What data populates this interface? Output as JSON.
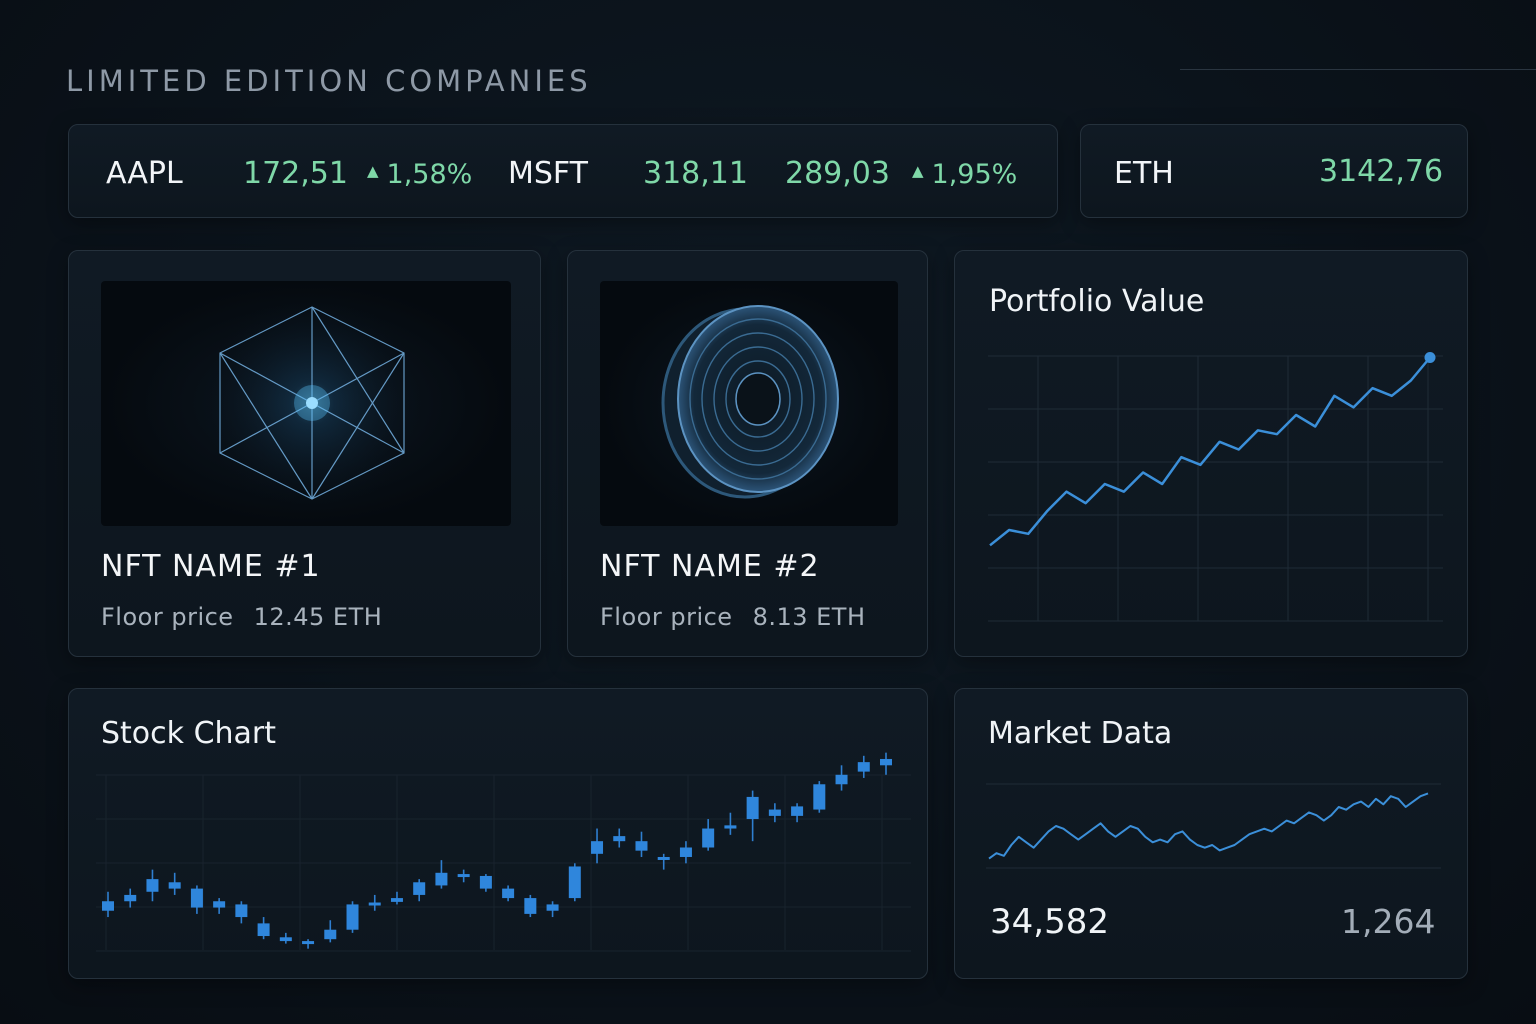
{
  "header": {
    "title": "LIMITED  EDITION COMPANIES"
  },
  "tickers": [
    {
      "symbol": "AAPL",
      "price": "172,51",
      "change": "1,58%"
    },
    {
      "symbol": "MSFT",
      "price": "318,11",
      "price2": "289,03",
      "change": "1,95%"
    }
  ],
  "eth": {
    "symbol": "ETH",
    "price": "3142,76"
  },
  "nfts": [
    {
      "name": "NFT NAME #1",
      "floor_label": "Floor price",
      "floor_value": "12.45 ETH",
      "image": "hexagon-crystal"
    },
    {
      "name": "NFT NAME #2",
      "floor_label": "Floor price",
      "floor_value": "8.13 ETH",
      "image": "coin"
    }
  ],
  "portfolio": {
    "title": "Portfolio Value",
    "accent": "#3b8fd9"
  },
  "stock_chart": {
    "title": "Stock Chart"
  },
  "market_data": {
    "title": "Market Data",
    "value_left": "34,582",
    "value_right": "1,264"
  },
  "colors": {
    "positive": "#7fd8a8",
    "accent": "#3b8fd9",
    "background": "#0b131b"
  },
  "chart_data": [
    {
      "type": "line",
      "title": "Portfolio Value",
      "x": [
        0,
        1,
        2,
        3,
        4,
        5,
        6,
        7,
        8,
        9,
        10,
        11,
        12,
        13,
        14,
        15,
        16,
        17,
        18,
        19,
        20,
        21,
        22,
        23
      ],
      "values": [
        8,
        12,
        11,
        17,
        22,
        19,
        24,
        22,
        27,
        24,
        31,
        29,
        35,
        33,
        38,
        37,
        42,
        39,
        47,
        44,
        49,
        47,
        51,
        57
      ]
    },
    {
      "type": "bar",
      "title": "Stock Chart",
      "candles": [
        {
          "o": 13,
          "c": 14.5,
          "h": 16,
          "l": 12
        },
        {
          "o": 14.5,
          "c": 15.5,
          "h": 16.5,
          "l": 13.5
        },
        {
          "o": 16,
          "c": 18,
          "h": 19.5,
          "l": 14.5
        },
        {
          "o": 17.5,
          "c": 16.5,
          "h": 19,
          "l": 15.5
        },
        {
          "o": 16.5,
          "c": 13.5,
          "h": 17,
          "l": 12.5
        },
        {
          "o": 14.5,
          "c": 13.5,
          "h": 15,
          "l": 12.5
        },
        {
          "o": 14,
          "c": 12,
          "h": 14.5,
          "l": 11
        },
        {
          "o": 11,
          "c": 9,
          "h": 12,
          "l": 8.5
        },
        {
          "o": 8.8,
          "c": 8.2,
          "h": 9.5,
          "l": 7.8
        },
        {
          "o": 8.2,
          "c": 7.8,
          "h": 8.5,
          "l": 7
        },
        {
          "o": 8.5,
          "c": 10,
          "h": 11.5,
          "l": 8
        },
        {
          "o": 10,
          "c": 14,
          "h": 14.5,
          "l": 9.5
        },
        {
          "o": 14,
          "c": 14.3,
          "h": 15.5,
          "l": 13
        },
        {
          "o": 14.4,
          "c": 15,
          "h": 16,
          "l": 14
        },
        {
          "o": 15.5,
          "c": 17.5,
          "h": 18,
          "l": 14.5
        },
        {
          "o": 17,
          "c": 19,
          "h": 21,
          "l": 16.5
        },
        {
          "o": 18.5,
          "c": 18.8,
          "h": 19.5,
          "l": 17.5
        },
        {
          "o": 18.5,
          "c": 16.5,
          "h": 18.8,
          "l": 16
        },
        {
          "o": 16.5,
          "c": 15,
          "h": 17,
          "l": 14.5
        },
        {
          "o": 15,
          "c": 12.5,
          "h": 15.5,
          "l": 12
        },
        {
          "o": 13,
          "c": 14,
          "h": 14.5,
          "l": 12
        },
        {
          "o": 15,
          "c": 20,
          "h": 20.5,
          "l": 14.5
        },
        {
          "o": 22,
          "c": 24,
          "h": 26,
          "l": 20.5
        },
        {
          "o": 24,
          "c": 24.8,
          "h": 26,
          "l": 23
        },
        {
          "o": 24,
          "c": 22.5,
          "h": 25.5,
          "l": 21.5
        },
        {
          "o": 21.5,
          "c": 21.2,
          "h": 22,
          "l": 19.5
        },
        {
          "o": 21.5,
          "c": 23,
          "h": 24,
          "l": 20.5
        },
        {
          "o": 23,
          "c": 26,
          "h": 27.5,
          "l": 22.5
        },
        {
          "o": 26,
          "c": 26.5,
          "h": 28.5,
          "l": 25
        },
        {
          "o": 27.5,
          "c": 31,
          "h": 32,
          "l": 24
        },
        {
          "o": 28,
          "c": 29,
          "h": 30,
          "l": 27
        },
        {
          "o": 28,
          "c": 29.5,
          "h": 30,
          "l": 27
        },
        {
          "o": 29,
          "c": 33,
          "h": 33.5,
          "l": 28.5
        },
        {
          "o": 33,
          "c": 34.5,
          "h": 36,
          "l": 32
        },
        {
          "o": 35,
          "c": 36.5,
          "h": 37.5,
          "l": 34
        },
        {
          "o": 36,
          "c": 37,
          "h": 38,
          "l": 34.5
        }
      ]
    },
    {
      "type": "line",
      "title": "Market Data",
      "x": [
        0,
        1,
        2,
        3,
        4,
        5,
        6,
        7,
        8,
        9,
        10,
        11,
        12,
        13,
        14,
        15,
        16,
        17,
        18,
        19,
        20,
        21,
        22,
        23,
        24,
        25,
        26,
        27,
        28,
        29,
        30,
        31,
        32,
        33,
        34,
        35,
        36,
        37,
        38,
        39,
        40,
        41,
        42,
        43,
        44,
        45,
        46,
        47,
        48,
        49,
        50,
        51,
        52,
        53,
        54,
        55,
        56,
        57,
        58,
        59
      ],
      "values": [
        2,
        4,
        3,
        7,
        10,
        8,
        6,
        9,
        12,
        14,
        13,
        11,
        9,
        11,
        13,
        15,
        12,
        10,
        12,
        14,
        13,
        10,
        8,
        9,
        8,
        11,
        12,
        9,
        7,
        6,
        7,
        5,
        6,
        7,
        9,
        11,
        12,
        13,
        12,
        14,
        16,
        15,
        17,
        19,
        18,
        16,
        18,
        21,
        20,
        22,
        23,
        21,
        24,
        22,
        25,
        24,
        21,
        23,
        25,
        26
      ]
    }
  ]
}
